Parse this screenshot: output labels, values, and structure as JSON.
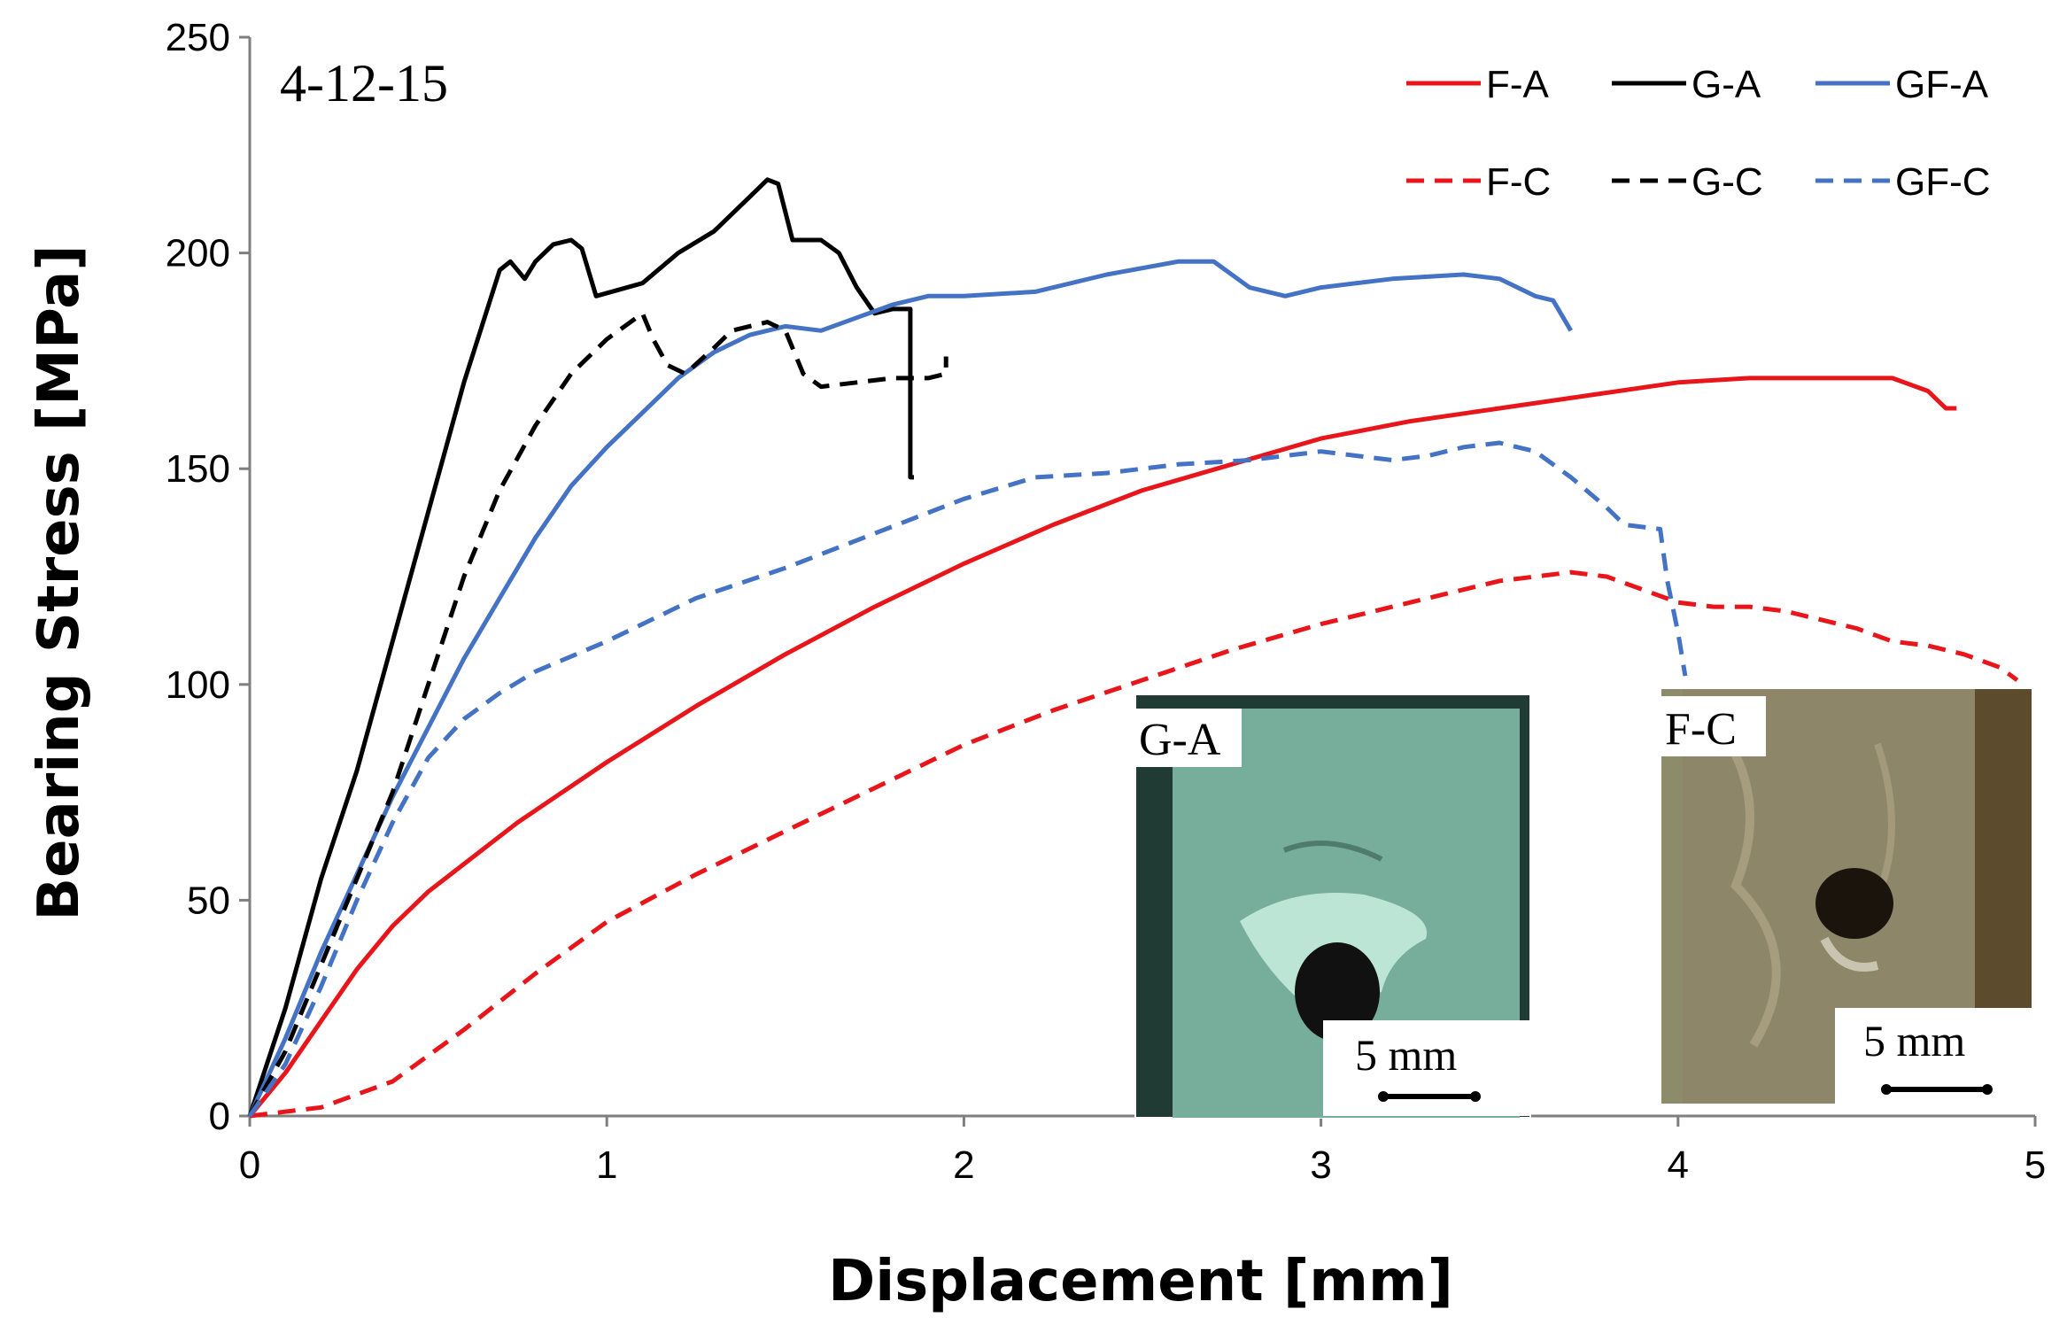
{
  "chart_data": {
    "type": "line",
    "title": "",
    "annotation": "4-12-15",
    "xlabel": "Displacement [mm]",
    "ylabel": "Bearing Stress [MPa]",
    "xlim": [
      0,
      5
    ],
    "ylim": [
      0,
      250
    ],
    "x_ticks": [
      "0",
      "1",
      "2",
      "3",
      "4",
      "5"
    ],
    "y_ticks": [
      "0",
      "50",
      "100",
      "150",
      "200",
      "250"
    ],
    "grid": false,
    "legend_position": "top-right",
    "series": [
      {
        "name": "F-A",
        "color": "#e8161b",
        "dash": "solid",
        "x": [
          0,
          0.1,
          0.2,
          0.3,
          0.4,
          0.5,
          0.75,
          1.0,
          1.25,
          1.5,
          1.75,
          2.0,
          2.25,
          2.5,
          2.75,
          3.0,
          3.25,
          3.5,
          3.75,
          4.0,
          4.2,
          4.4,
          4.6,
          4.7,
          4.75,
          4.78
        ],
        "y": [
          0,
          10,
          22,
          34,
          44,
          52,
          68,
          82,
          95,
          107,
          118,
          128,
          137,
          145,
          151,
          157,
          161,
          164,
          167,
          170,
          171,
          171,
          171,
          168,
          164,
          164
        ]
      },
      {
        "name": "G-A",
        "color": "#000000",
        "dash": "solid",
        "x": [
          0,
          0.1,
          0.2,
          0.3,
          0.4,
          0.5,
          0.6,
          0.7,
          0.73,
          0.77,
          0.8,
          0.85,
          0.9,
          0.93,
          0.97,
          1.1,
          1.2,
          1.3,
          1.4,
          1.45,
          1.48,
          1.52,
          1.6,
          1.65,
          1.7,
          1.75,
          1.8,
          1.85,
          1.85,
          1.86
        ],
        "y": [
          0,
          25,
          55,
          80,
          110,
          140,
          170,
          196,
          198,
          194,
          198,
          202,
          203,
          201,
          190,
          193,
          200,
          205,
          213,
          217,
          216,
          203,
          203,
          200,
          192,
          186,
          187,
          187,
          148,
          148
        ]
      },
      {
        "name": "GF-A",
        "color": "#4472c4",
        "dash": "solid",
        "x": [
          0,
          0.1,
          0.2,
          0.3,
          0.4,
          0.5,
          0.6,
          0.7,
          0.8,
          0.9,
          1.0,
          1.1,
          1.2,
          1.3,
          1.4,
          1.5,
          1.6,
          1.7,
          1.8,
          1.9,
          2.0,
          2.2,
          2.4,
          2.6,
          2.7,
          2.8,
          2.9,
          3.0,
          3.2,
          3.4,
          3.5,
          3.6,
          3.65,
          3.7
        ],
        "y": [
          0,
          18,
          38,
          56,
          74,
          90,
          106,
          120,
          134,
          146,
          155,
          163,
          171,
          177,
          181,
          183,
          182,
          185,
          188,
          190,
          190,
          191,
          195,
          198,
          198,
          192,
          190,
          192,
          194,
          195,
          194,
          190,
          189,
          182
        ]
      },
      {
        "name": "F-C",
        "color": "#e8161b",
        "dash": "dashed",
        "x": [
          0,
          0.2,
          0.4,
          0.6,
          0.8,
          1.0,
          1.25,
          1.5,
          1.75,
          2.0,
          2.25,
          2.5,
          2.75,
          3.0,
          3.25,
          3.5,
          3.6,
          3.7,
          3.8,
          3.9,
          4.0,
          4.1,
          4.2,
          4.3,
          4.4,
          4.5,
          4.6,
          4.7,
          4.8,
          4.9,
          4.95
        ],
        "y": [
          0,
          2,
          8,
          20,
          33,
          45,
          56,
          66,
          76,
          86,
          94,
          101,
          108,
          114,
          119,
          124,
          125,
          126,
          125,
          122,
          119,
          118,
          118,
          117,
          115,
          113,
          110,
          109,
          107,
          104,
          101
        ]
      },
      {
        "name": "G-C",
        "color": "#000000",
        "dash": "dashed",
        "x": [
          0,
          0.1,
          0.2,
          0.3,
          0.4,
          0.5,
          0.6,
          0.7,
          0.8,
          0.9,
          1.0,
          1.05,
          1.1,
          1.13,
          1.17,
          1.22,
          1.3,
          1.35,
          1.45,
          1.5,
          1.55,
          1.6,
          1.7,
          1.8,
          1.9,
          1.95,
          1.95
        ],
        "y": [
          0,
          15,
          35,
          55,
          75,
          100,
          125,
          145,
          160,
          172,
          180,
          183,
          186,
          180,
          174,
          172,
          178,
          182,
          184,
          182,
          172,
          169,
          170,
          171,
          171,
          172,
          176
        ]
      },
      {
        "name": "GF-C",
        "color": "#4472c4",
        "dash": "dashed",
        "x": [
          0,
          0.1,
          0.2,
          0.3,
          0.4,
          0.5,
          0.6,
          0.7,
          0.8,
          1.0,
          1.25,
          1.5,
          1.75,
          2.0,
          2.2,
          2.4,
          2.6,
          2.8,
          3.0,
          3.1,
          3.2,
          3.3,
          3.4,
          3.5,
          3.6,
          3.7,
          3.8,
          3.85,
          3.95,
          3.97,
          4.0,
          4.02
        ],
        "y": [
          0,
          12,
          30,
          50,
          68,
          83,
          92,
          98,
          103,
          110,
          120,
          127,
          135,
          143,
          148,
          149,
          151,
          152,
          154,
          153,
          152,
          153,
          155,
          156,
          154,
          148,
          141,
          137,
          136,
          124,
          112,
          102
        ]
      }
    ],
    "insets": [
      {
        "label": "G-A",
        "scale_bar": "5 mm"
      },
      {
        "label": "F-C",
        "scale_bar": "5 mm"
      }
    ]
  }
}
